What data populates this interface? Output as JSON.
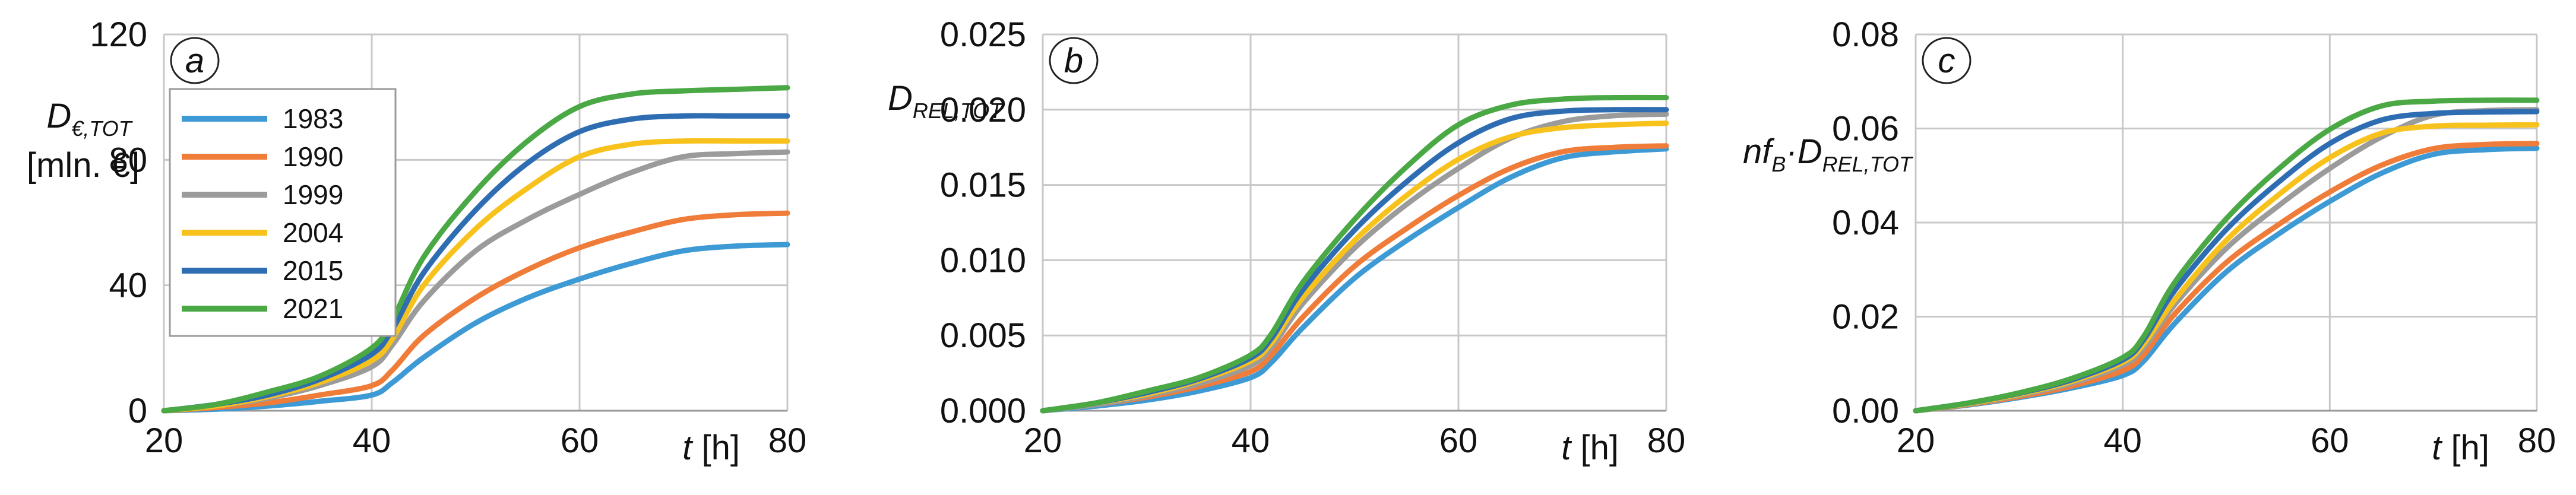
{
  "chart_data": [
    {
      "type": "line",
      "panel": "a",
      "ylabel_main": "D",
      "ylabel_sub": "€,TOT",
      "ylabel_line2": "[mln. €]",
      "xlabel_var": "t",
      "xlabel_unit": " [h]",
      "xlim": [
        20,
        80
      ],
      "ylim": [
        0,
        120
      ],
      "xticks": [
        "20",
        "40",
        "60",
        "80"
      ],
      "yticks": [
        "0",
        "40",
        "80",
        "120"
      ],
      "ytick_values": [
        0,
        40,
        80,
        120
      ],
      "grid": true,
      "legend_placement": "top-left",
      "x": [
        20,
        25,
        30,
        35,
        40,
        42,
        45,
        50,
        55,
        60,
        65,
        70,
        75,
        80
      ],
      "series": [
        {
          "name": "1983",
          "values": [
            0,
            0.5,
            1.5,
            3,
            5,
            9,
            17,
            28,
            36,
            42,
            47,
            51,
            52.5,
            53
          ]
        },
        {
          "name": "1990",
          "values": [
            0,
            1,
            2.5,
            5,
            8,
            13,
            24,
            36,
            45,
            52,
            57,
            61,
            62.5,
            63
          ]
        },
        {
          "name": "1999",
          "values": [
            0,
            1.5,
            4,
            8,
            14,
            21,
            35,
            51,
            61,
            69,
            76,
            81,
            82,
            82.5
          ]
        },
        {
          "name": "2004",
          "values": [
            0,
            1.5,
            4.5,
            9,
            16,
            23,
            40,
            58,
            71,
            81,
            85,
            86,
            86,
            86
          ]
        },
        {
          "name": "2015",
          "values": [
            0,
            2,
            5,
            10,
            18,
            26,
            44,
            64,
            79,
            89,
            93,
            94,
            94,
            94
          ]
        },
        {
          "name": "2021",
          "values": [
            0,
            2,
            6,
            11,
            20,
            29,
            49,
            70,
            86,
            97,
            101,
            102,
            102.5,
            103
          ]
        }
      ]
    },
    {
      "type": "line",
      "panel": "b",
      "ylabel_main": "D",
      "ylabel_sub": "REL,TOT",
      "xlabel_var": "t",
      "xlabel_unit": " [h]",
      "xlim": [
        20,
        80
      ],
      "ylim": [
        0,
        0.025
      ],
      "xticks": [
        "20",
        "40",
        "60",
        "80"
      ],
      "yticks": [
        "0.000",
        "0.005",
        "0.010",
        "0.015",
        "0.020",
        "0.025"
      ],
      "ytick_values": [
        0,
        0.005,
        0.01,
        0.015,
        0.02,
        0.025
      ],
      "grid": true,
      "x": [
        20,
        25,
        30,
        35,
        40,
        42,
        45,
        50,
        55,
        60,
        65,
        70,
        75,
        80
      ],
      "series": [
        {
          "name": "1983",
          "values": [
            0,
            0.0003,
            0.0007,
            0.0013,
            0.0022,
            0.0032,
            0.0055,
            0.0088,
            0.0113,
            0.0135,
            0.0155,
            0.0168,
            0.0172,
            0.0174
          ]
        },
        {
          "name": "1990",
          "values": [
            0,
            0.0004,
            0.0009,
            0.0016,
            0.0026,
            0.0037,
            0.0062,
            0.0096,
            0.0121,
            0.0143,
            0.0161,
            0.0172,
            0.0175,
            0.0176
          ]
        },
        {
          "name": "1999",
          "values": [
            0,
            0.0004,
            0.001,
            0.0018,
            0.003,
            0.0042,
            0.0071,
            0.0108,
            0.0137,
            0.0161,
            0.0181,
            0.0192,
            0.0196,
            0.0197
          ]
        },
        {
          "name": "2004",
          "values": [
            0,
            0.0005,
            0.0011,
            0.002,
            0.0033,
            0.0045,
            0.0075,
            0.0113,
            0.0143,
            0.0167,
            0.0182,
            0.0188,
            0.019,
            0.0191
          ]
        },
        {
          "name": "2015",
          "values": [
            0,
            0.0005,
            0.0012,
            0.0021,
            0.0035,
            0.0048,
            0.008,
            0.012,
            0.0152,
            0.0178,
            0.0194,
            0.0199,
            0.02,
            0.02
          ]
        },
        {
          "name": "2021",
          "values": [
            0,
            0.0005,
            0.0013,
            0.0022,
            0.0037,
            0.0051,
            0.0085,
            0.0127,
            0.0162,
            0.019,
            0.0203,
            0.0207,
            0.0208,
            0.0208
          ]
        }
      ]
    },
    {
      "type": "line",
      "panel": "c",
      "ylabel_main": "nf",
      "ylabel_sub1": "B",
      "ylabel_dot": "·D",
      "ylabel_sub2": "REL,TOT",
      "xlabel_var": "t",
      "xlabel_unit": " [h]",
      "xlim": [
        20,
        80
      ],
      "ylim": [
        0,
        0.08
      ],
      "xticks": [
        "20",
        "40",
        "60",
        "80"
      ],
      "yticks": [
        "0.00",
        "0.02",
        "0.04",
        "0.06",
        "0.08"
      ],
      "ytick_values": [
        0,
        0.02,
        0.04,
        0.06,
        0.08
      ],
      "grid": true,
      "x": [
        20,
        25,
        30,
        35,
        40,
        42,
        45,
        50,
        55,
        60,
        65,
        70,
        75,
        80
      ],
      "series": [
        {
          "name": "1983",
          "values": [
            0,
            0.0012,
            0.0028,
            0.0048,
            0.0075,
            0.0105,
            0.0185,
            0.0295,
            0.0375,
            0.0445,
            0.0505,
            0.0545,
            0.0555,
            0.0558
          ]
        },
        {
          "name": "1990",
          "values": [
            0,
            0.0013,
            0.003,
            0.0052,
            0.0085,
            0.0118,
            0.0205,
            0.0315,
            0.0395,
            0.0465,
            0.0522,
            0.0557,
            0.0566,
            0.0568
          ]
        },
        {
          "name": "1999",
          "values": [
            0,
            0.0014,
            0.0033,
            0.0058,
            0.0097,
            0.0133,
            0.0225,
            0.0345,
            0.0435,
            0.0515,
            0.0582,
            0.0628,
            0.0638,
            0.064
          ]
        },
        {
          "name": "2004",
          "values": [
            0,
            0.0015,
            0.0035,
            0.0062,
            0.0103,
            0.0141,
            0.0235,
            0.0362,
            0.0458,
            0.0538,
            0.059,
            0.0605,
            0.0607,
            0.0608
          ]
        },
        {
          "name": "2015",
          "values": [
            0,
            0.0016,
            0.0037,
            0.0065,
            0.0108,
            0.015,
            0.0255,
            0.0385,
            0.0485,
            0.0568,
            0.0618,
            0.0632,
            0.0635,
            0.0636
          ]
        },
        {
          "name": "2021",
          "values": [
            0,
            0.0016,
            0.0038,
            0.0068,
            0.0113,
            0.0157,
            0.0272,
            0.0408,
            0.0513,
            0.0598,
            0.0648,
            0.0658,
            0.066,
            0.066
          ]
        }
      ]
    }
  ],
  "colors": {
    "1983": "#3d9ad4",
    "1990": "#f07c3a",
    "1999": "#9b9b9b",
    "2004": "#f8c21c",
    "2015": "#2f6db3",
    "2021": "#4aa845"
  }
}
